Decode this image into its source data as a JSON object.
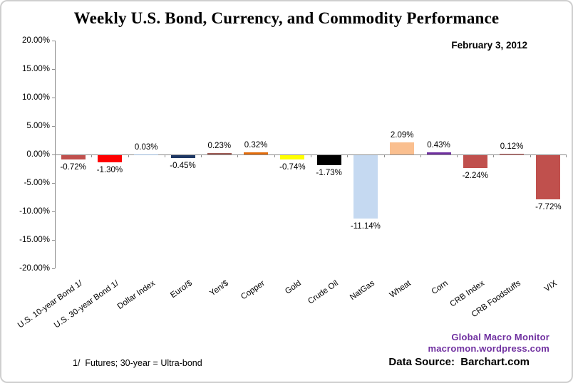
{
  "chart": {
    "title": "Weekly U.S. Bond, Currency, and Commodity Performance",
    "date": "February 3, 2012",
    "footnote": "1/  Futures; 30-year = Ultra-bond",
    "attribution_line1": "Global Macro Monitor",
    "attribution_line2": "macromon.wordpress.com",
    "data_source": "Data Source:  Barchart.com"
  },
  "colors": {
    "accent_purple": "#7030A0",
    "axis_gray": "#8c8c8c",
    "border_gray": "#cfcfcf"
  },
  "chart_data": {
    "type": "bar",
    "title": "Weekly U.S. Bond, Currency, and Commodity Performance",
    "subtitle": "February 3, 2012",
    "categories": [
      "U.S. 10-year Bond 1/",
      "U.S. 30-year Bond 1/",
      "Dollar Index",
      "Euro/$",
      "Yen/$",
      "Copper",
      "Gold",
      "Crude Oil",
      "NatGas",
      "Wheat",
      "Corn",
      "CRB Index",
      "CRB Foodstuffs",
      "VIX"
    ],
    "values": [
      -0.72,
      -1.3,
      0.03,
      -0.45,
      0.23,
      0.32,
      -0.74,
      -1.73,
      -11.14,
      2.09,
      0.43,
      -2.24,
      0.12,
      -7.72
    ],
    "value_labels": [
      "-0.72%",
      "-1.30%",
      "0.03%",
      "-0.45%",
      "0.23%",
      "0.32%",
      "-0.74%",
      "-1.73%",
      "-11.14%",
      "2.09%",
      "0.43%",
      "-2.24%",
      "0.12%",
      "-7.72%"
    ],
    "bar_colors": [
      "#C0504D",
      "#FF0000",
      "#95B3D7",
      "#1F3864",
      "#9E5C55",
      "#E36C0A",
      "#FFFF00",
      "#000000",
      "#C5D9F1",
      "#FABF8F",
      "#7030A0",
      "#C0504D",
      "#C0504D",
      "#C0504D"
    ],
    "xlabel": "",
    "ylabel": "",
    "ylim": [
      -20,
      20
    ],
    "ytick_step": 5,
    "y_tick_labels": [
      "20.00%",
      "15.00%",
      "10.00%",
      "5.00%",
      "0.00%",
      "-5.00%",
      "-10.00%",
      "-15.00%",
      "-20.00%"
    ],
    "grid": "none",
    "legend": "none"
  }
}
